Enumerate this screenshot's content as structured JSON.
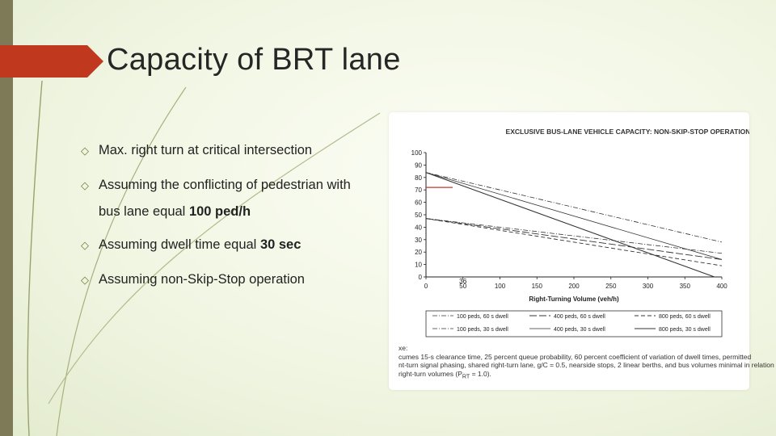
{
  "slide": {
    "title": "Capacity of BRT lane",
    "bullets": [
      {
        "text": "Max. right turn at critical intersection"
      },
      {
        "text": "Assuming the conflicting of pedestrian with",
        "cont_prefix": "bus lane equal ",
        "cont_bold": "100 ped/h"
      },
      {
        "text_prefix": "Assuming dwell time equal ",
        "text_bold": "30 sec"
      },
      {
        "text": "Assuming non-Skip-Stop operation"
      }
    ],
    "bullet_icon": "diamond-outline-icon",
    "colors": {
      "accent_bar": "#c0391f",
      "left_bar": "#7e7a57",
      "marker": "#c0392b"
    }
  },
  "chart_data": {
    "type": "line",
    "title": "Exclusive Bus-Lane Vehicle Capacity: Non-Skip-Stop Operation",
    "xlabel": "Right-Turning Volume (veh/h)",
    "ylabel": "",
    "xlim": [
      0,
      400
    ],
    "ylim": [
      0,
      100
    ],
    "x_ticks": [
      0,
      50,
      100,
      150,
      200,
      250,
      300,
      350,
      400
    ],
    "y_ticks": [
      0,
      10,
      20,
      30,
      40,
      50,
      60,
      70,
      80,
      90,
      100
    ],
    "series": [
      {
        "name": "100 peds, 60 s dwell",
        "style": "dash-dot",
        "x": [
          0,
          400
        ],
        "y": [
          47,
          19
        ]
      },
      {
        "name": "400 peds, 60 s dwell",
        "style": "long-dash",
        "x": [
          0,
          400
        ],
        "y": [
          47,
          14
        ]
      },
      {
        "name": "800 peds, 60 s dwell",
        "style": "dash",
        "x": [
          0,
          400
        ],
        "y": [
          47,
          9
        ]
      },
      {
        "name": "100 peds, 30 s dwell",
        "style": "dash-dot",
        "x": [
          0,
          400
        ],
        "y": [
          84,
          28
        ]
      },
      {
        "name": "400 peds, 30 s dwell",
        "style": "solid-thin",
        "x": [
          0,
          400
        ],
        "y": [
          84,
          14
        ]
      },
      {
        "name": "800 peds, 30 s dwell",
        "style": "solid",
        "x": [
          0,
          390
        ],
        "y": [
          84,
          0
        ]
      }
    ],
    "annotations": [
      {
        "type": "marker-line",
        "y": 72,
        "x": [
          0,
          36
        ]
      },
      {
        "type": "label",
        "text": "36",
        "x": 36
      }
    ],
    "legend": "below",
    "notes": [
      "xe:",
      "cumes 15-s clearance time, 25 percent queue probability, 60 percent coefficient of variation of dwell times, permitted",
      "nt-turn signal phasing, shared right-turn lane, g/C = 0.5, nearside stops, 2 linear berths, and bus volumes minimal in relation",
      "right-turn volumes (P",
      "RT",
      " = 1.0)."
    ]
  }
}
